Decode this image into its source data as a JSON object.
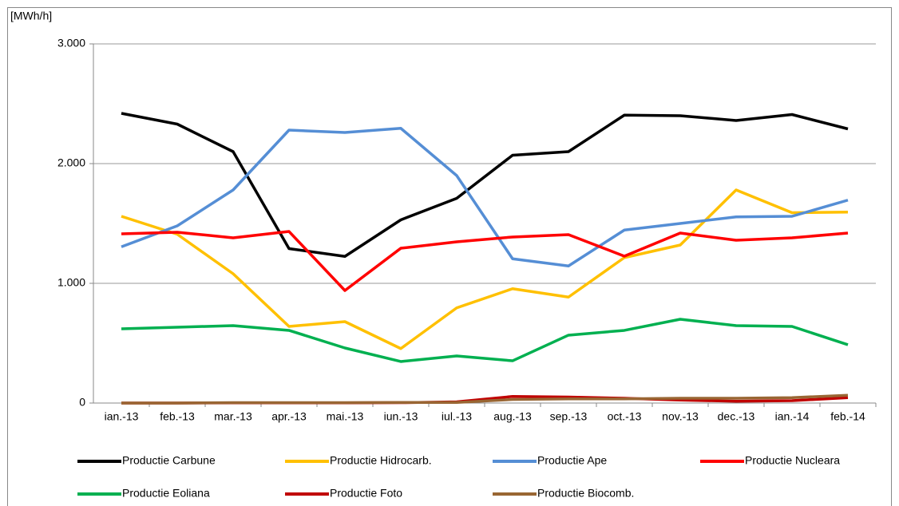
{
  "chart_data": {
    "type": "line",
    "y_axis_label": "[MWh/h]",
    "categories": [
      "ian.-13",
      "feb.-13",
      "mar.-13",
      "apr.-13",
      "mai.-13",
      "iun.-13",
      "iul.-13",
      "aug.-13",
      "sep.-13",
      "oct.-13",
      "nov.-13",
      "dec.-13",
      "ian.-14",
      "feb.-14"
    ],
    "series": [
      {
        "name": "Productie Carbune",
        "color": "#000000",
        "values": [
          2420,
          2330,
          2100,
          1290,
          1225,
          1530,
          1710,
          2070,
          2100,
          2405,
          2400,
          2360,
          2410,
          2290
        ]
      },
      {
        "name": "Productie Hidrocarb.",
        "color": "#ffc000",
        "values": [
          1560,
          1410,
          1080,
          640,
          680,
          455,
          795,
          955,
          885,
          1215,
          1320,
          1780,
          1590,
          1595
        ]
      },
      {
        "name": "Productie Ape",
        "color": "#558ed5",
        "values": [
          1305,
          1480,
          1780,
          2280,
          2260,
          2295,
          1900,
          1205,
          1145,
          1445,
          1500,
          1555,
          1560,
          1695
        ]
      },
      {
        "name": "Productie Nucleara",
        "color": "#ff0000",
        "values": [
          1413,
          1427,
          1380,
          1433,
          940,
          1293,
          1347,
          1387,
          1407,
          1227,
          1420,
          1360,
          1380,
          1420
        ]
      },
      {
        "name": "Productie Eoliana",
        "color": "#00b050",
        "values": [
          620,
          633,
          647,
          607,
          460,
          347,
          393,
          353,
          567,
          607,
          700,
          647,
          640,
          487
        ]
      },
      {
        "name": "Productie Foto",
        "color": "#c00000",
        "values": [
          0,
          0,
          2,
          2,
          2,
          3,
          10,
          55,
          50,
          40,
          25,
          15,
          20,
          45
        ]
      },
      {
        "name": "Productie Biocomb.",
        "color": "#996633",
        "values": [
          0,
          0,
          3,
          3,
          3,
          5,
          5,
          30,
          35,
          35,
          40,
          40,
          45,
          65
        ]
      }
    ],
    "ylim": [
      0,
      3000
    ],
    "yticks": [
      0,
      {
        "value": 1000,
        "label": "1.000"
      },
      {
        "value": 2000,
        "label": "2.000"
      },
      {
        "value": 3000,
        "label": "3.000"
      }
    ],
    "grid": true,
    "legend": "bottom"
  }
}
